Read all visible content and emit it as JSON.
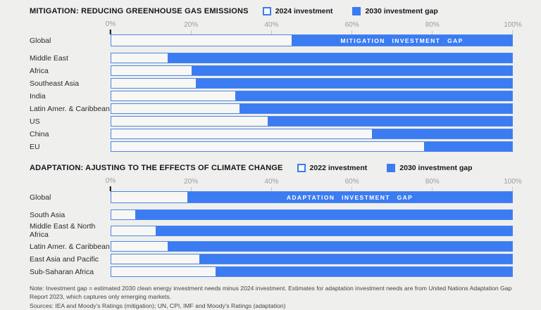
{
  "colors": {
    "gap_fill": "#3b7cf2",
    "investment_fill": "#f7f7f5",
    "bar_border": "#4e86e8",
    "background": "#efefed"
  },
  "chart_data": [
    {
      "type": "bar",
      "orientation": "horizontal-stacked",
      "title": "MITIGATION: REDUCING GREENHOUSE GAS EMISSIONS",
      "legend": [
        "2024 investment",
        "2030 investment gap"
      ],
      "gap_bar_label": "MITIGATION INVESTMENT GAP",
      "xlim": [
        0,
        100
      ],
      "x_ticks": [
        "0%",
        "20%",
        "40%",
        "60%",
        "80%",
        "100%"
      ],
      "categories": [
        "Global",
        "Middle East",
        "Africa",
        "Southeast Asia",
        "India",
        "Latin Amer. & Caribbean",
        "US",
        "China",
        "EU"
      ],
      "series": [
        {
          "name": "2024 investment",
          "values": [
            45,
            14,
            20,
            21,
            31,
            32,
            39,
            65,
            78
          ]
        },
        {
          "name": "2030 investment gap",
          "values": [
            55,
            86,
            80,
            79,
            69,
            68,
            61,
            35,
            22
          ]
        }
      ]
    },
    {
      "type": "bar",
      "orientation": "horizontal-stacked",
      "title": "ADAPTATION: AJUSTING TO THE EFFECTS OF CLIMATE CHANGE",
      "legend": [
        "2022 investment",
        "2030 investment gap"
      ],
      "gap_bar_label": "ADAPTATION INVESTMENT GAP",
      "xlim": [
        0,
        100
      ],
      "x_ticks": [
        "0%",
        "20%",
        "40%",
        "60%",
        "80%",
        "100%"
      ],
      "categories": [
        "Global",
        "South Asia",
        "Middle East & North Africa",
        "Latin Amer. & Caribbean",
        "East Asia and Pacific",
        "Sub-Saharan Africa"
      ],
      "series": [
        {
          "name": "2022 investment",
          "values": [
            19,
            6,
            11,
            14,
            22,
            26
          ]
        },
        {
          "name": "2030 investment gap",
          "values": [
            81,
            94,
            89,
            86,
            78,
            74
          ]
        }
      ]
    }
  ],
  "footnotes": {
    "note": "Note: Investment gap = estimated 2030 clean energy investment needs minus 2024 investment. Estimates for adaptation investment needs are from United Nations Adaptation Gap Report 2023, which captures only emerging markets.",
    "sources": "Sources: IEA and Moody's Ratings (mitigation); UN, CPI, IMF and Moody's Ratings (adaptation)"
  }
}
